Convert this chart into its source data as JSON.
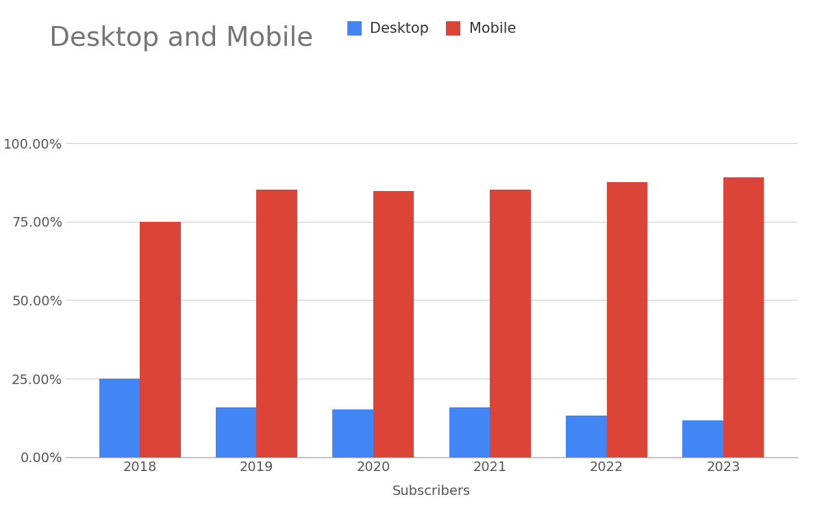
{
  "title": "Desktop and Mobile",
  "xlabel": "Subscribers",
  "ylabel": "",
  "categories": [
    "2018",
    "2019",
    "2020",
    "2021",
    "2022",
    "2023"
  ],
  "desktop_values": [
    0.2512,
    0.1588,
    0.153,
    0.1588,
    0.133,
    0.118
  ],
  "mobile_values": [
    0.7488,
    0.8512,
    0.847,
    0.8512,
    0.876,
    0.892
  ],
  "desktop_color": "#4285F4",
  "mobile_color": "#DB4437",
  "background_color": "#ffffff",
  "title_fontsize": 28,
  "label_fontsize": 14,
  "tick_fontsize": 14,
  "legend_fontsize": 15,
  "yticks": [
    0.0,
    0.25,
    0.5,
    0.75,
    1.0
  ],
  "ylim": [
    0,
    1.1
  ],
  "bar_width": 0.35,
  "grid_color": "#cccccc",
  "title_color": "#757575",
  "axis_label_color": "#555555",
  "tick_color": "#555555"
}
